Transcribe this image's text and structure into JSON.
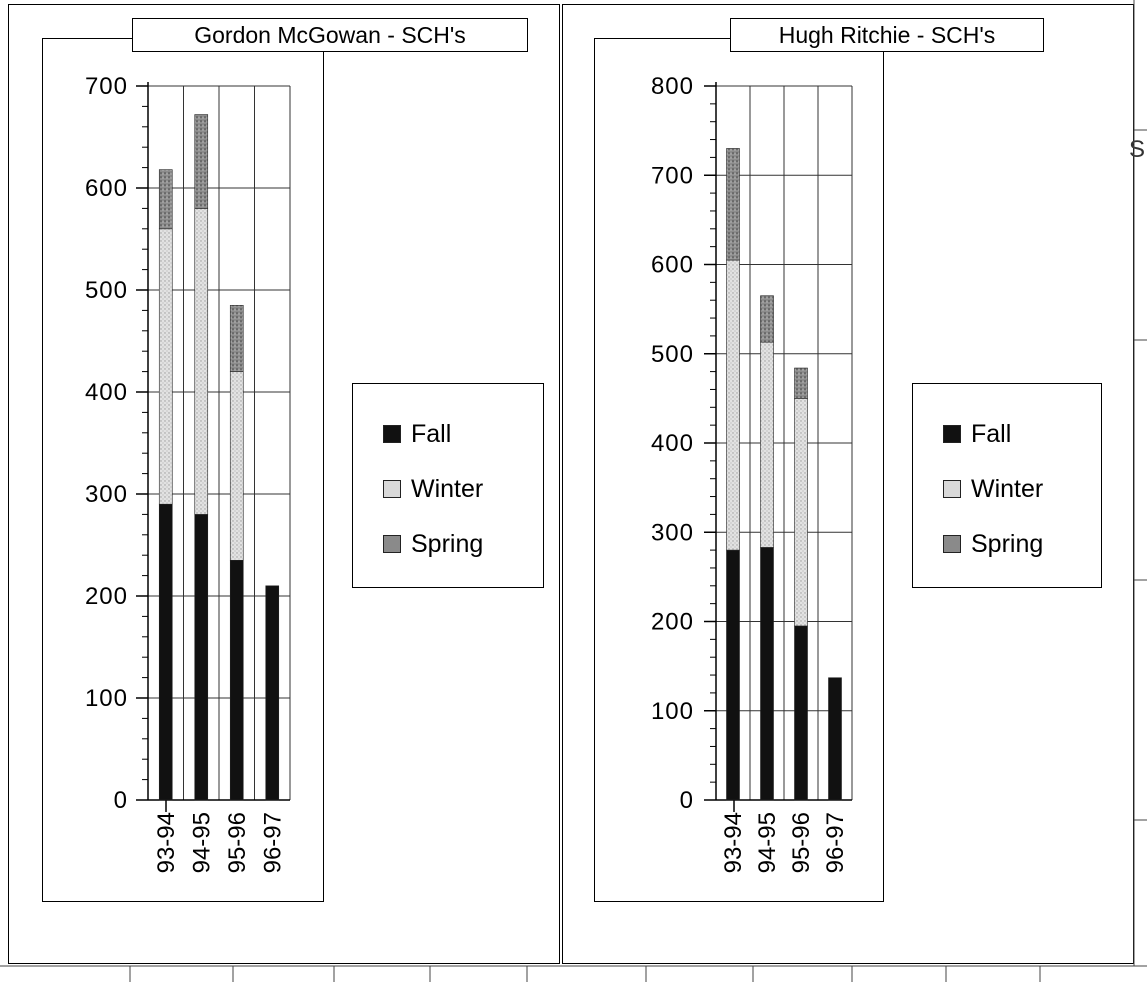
{
  "chart_data": [
    {
      "type": "bar",
      "stacked": true,
      "title": "Gordon McGowan - SCH's",
      "categories": [
        "93-94",
        "94-95",
        "95-96",
        "96-97"
      ],
      "yticks": [
        "700",
        "600",
        "500",
        "400",
        "300",
        "200",
        "100",
        "0"
      ],
      "ylim": [
        0,
        700
      ],
      "grid": true,
      "legend_position": "right",
      "series": [
        {
          "name": "Fall",
          "values": [
            290,
            280,
            235,
            210
          ]
        },
        {
          "name": "Winter",
          "values": [
            270,
            300,
            185,
            0
          ]
        },
        {
          "name": "Spring",
          "values": [
            58,
            92,
            65,
            0
          ]
        }
      ]
    },
    {
      "type": "bar",
      "stacked": true,
      "title": "Hugh Ritchie - SCH's",
      "categories": [
        "93-94",
        "94-95",
        "95-96",
        "96-97"
      ],
      "yticks": [
        "800",
        "700",
        "600",
        "500",
        "400",
        "300",
        "200",
        "100",
        "0"
      ],
      "ylim": [
        0,
        800
      ],
      "grid": true,
      "legend_position": "right",
      "series": [
        {
          "name": "Fall",
          "values": [
            280,
            283,
            195,
            137
          ]
        },
        {
          "name": "Winter",
          "values": [
            325,
            230,
            255,
            0
          ]
        },
        {
          "name": "Spring",
          "values": [
            125,
            52,
            34,
            0
          ]
        }
      ]
    }
  ],
  "colors": {
    "Fall": "#111111",
    "Winter": "#d9d9d9",
    "Spring": "#8a8a8a",
    "axis": "#000000",
    "grid": "#333333"
  },
  "legend": {
    "items": [
      "Fall",
      "Winter",
      "Spring"
    ]
  },
  "stray_text": "S"
}
